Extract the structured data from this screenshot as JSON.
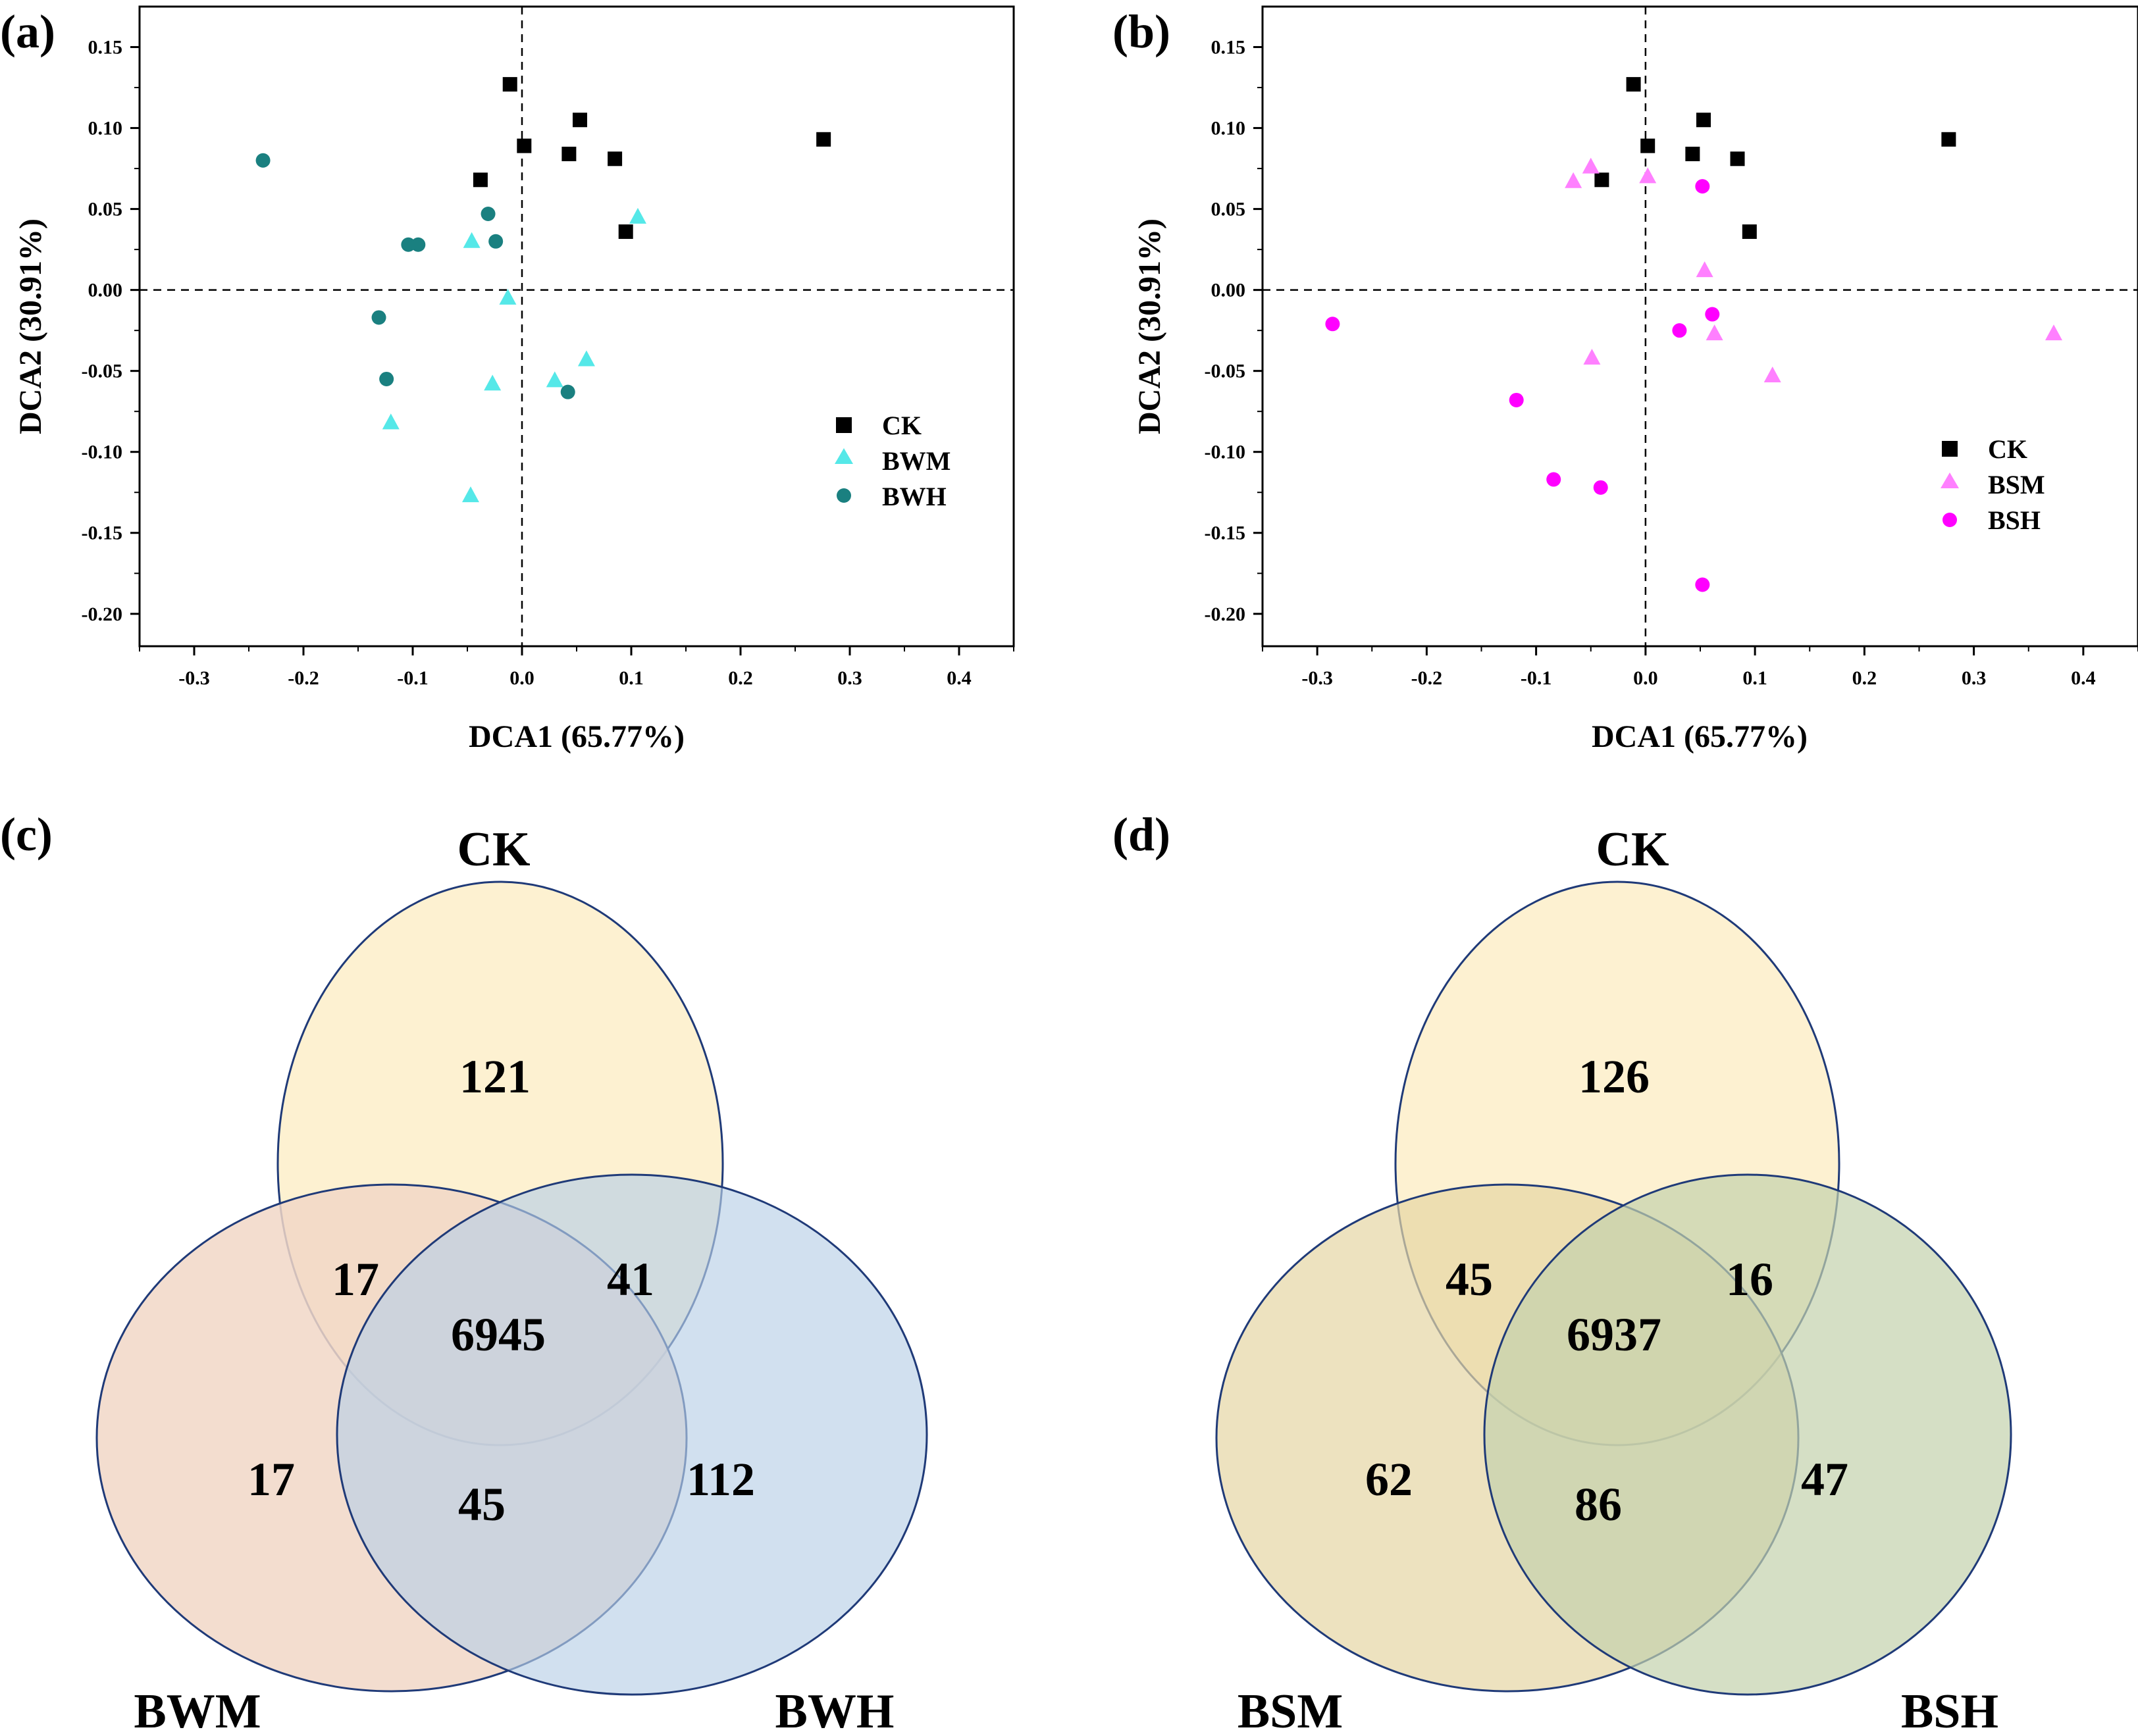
{
  "figure": {
    "panel_labels": [
      "(a)",
      "(b)",
      "(c)",
      "(d)"
    ]
  },
  "chart_data": [
    {
      "panel": "(a)",
      "type": "scatter",
      "xlabel": "DCA1 (65.77%)",
      "ylabel": "DCA2 (30.91%)",
      "xlim": [
        -0.35,
        0.45
      ],
      "ylim": [
        -0.22,
        0.175
      ],
      "xticks": [
        "-0.3",
        "-0.2",
        "-0.1",
        "0.0",
        "0.1",
        "0.2",
        "0.3",
        "0.4"
      ],
      "xtick_values": [
        -0.3,
        -0.2,
        -0.1,
        0.0,
        0.1,
        0.2,
        0.3,
        0.4
      ],
      "yticks": [
        "0.15",
        "0.10",
        "0.05",
        "0.00",
        "-0.05",
        "-0.10",
        "-0.15",
        "-0.20"
      ],
      "ytick_values": [
        0.15,
        0.1,
        0.05,
        0.0,
        -0.05,
        -0.1,
        -0.15,
        -0.2
      ],
      "reference_lines": {
        "x": 0,
        "y": 0
      },
      "legend_position": "center-right",
      "series": [
        {
          "name": "CK",
          "marker": "square",
          "color": "#000000",
          "points": [
            [
              -0.011,
              0.127
            ],
            [
              0.002,
              0.089
            ],
            [
              -0.038,
              0.068
            ],
            [
              0.053,
              0.105
            ],
            [
              0.043,
              0.084
            ],
            [
              0.085,
              0.081
            ],
            [
              0.095,
              0.036
            ],
            [
              0.276,
              0.093
            ]
          ]
        },
        {
          "name": "BWM",
          "marker": "triangle",
          "color": "#55e8e8",
          "points": [
            [
              0.106,
              0.045
            ],
            [
              -0.046,
              0.03
            ],
            [
              -0.013,
              -0.005
            ],
            [
              -0.027,
              -0.058
            ],
            [
              0.03,
              -0.056
            ],
            [
              0.059,
              -0.043
            ],
            [
              -0.12,
              -0.082
            ],
            [
              -0.047,
              -0.127
            ]
          ]
        },
        {
          "name": "BWH",
          "marker": "circle",
          "color": "#1a8080",
          "points": [
            [
              -0.237,
              0.08
            ],
            [
              -0.031,
              0.047
            ],
            [
              -0.024,
              0.03
            ],
            [
              -0.104,
              0.028
            ],
            [
              -0.095,
              0.028
            ],
            [
              -0.131,
              -0.017
            ],
            [
              -0.124,
              -0.055
            ],
            [
              0.042,
              -0.063
            ]
          ]
        }
      ]
    },
    {
      "panel": "(b)",
      "type": "scatter",
      "xlabel": "DCA1 (65.77%)",
      "ylabel": "DCA2 (30.91%)",
      "xlim": [
        -0.35,
        0.45
      ],
      "ylim": [
        -0.22,
        0.175
      ],
      "xticks": [
        "-0.3",
        "-0.2",
        "-0.1",
        "0.0",
        "0.1",
        "0.2",
        "0.3",
        "0.4"
      ],
      "xtick_values": [
        -0.3,
        -0.2,
        -0.1,
        0.0,
        0.1,
        0.2,
        0.3,
        0.4
      ],
      "yticks": [
        "0.15",
        "0.10",
        "0.05",
        "0.00",
        "-0.05",
        "-0.10",
        "-0.15",
        "-0.20"
      ],
      "ytick_values": [
        0.15,
        0.1,
        0.05,
        0.0,
        -0.05,
        -0.1,
        -0.15,
        -0.2
      ],
      "reference_lines": {
        "x": 0,
        "y": 0
      },
      "legend_position": "center-right",
      "series": [
        {
          "name": "CK",
          "marker": "square",
          "color": "#000000",
          "points": [
            [
              -0.011,
              0.127
            ],
            [
              0.002,
              0.089
            ],
            [
              -0.04,
              0.068
            ],
            [
              0.053,
              0.105
            ],
            [
              0.043,
              0.084
            ],
            [
              0.084,
              0.081
            ],
            [
              0.095,
              0.036
            ],
            [
              0.277,
              0.093
            ]
          ]
        },
        {
          "name": "BSM",
          "marker": "triangle",
          "color": "#ff80ff",
          "points": [
            [
              -0.066,
              0.067
            ],
            [
              -0.05,
              0.076
            ],
            [
              0.002,
              0.07
            ],
            [
              0.054,
              0.012
            ],
            [
              0.063,
              -0.027
            ],
            [
              0.116,
              -0.053
            ],
            [
              -0.049,
              -0.042
            ],
            [
              0.373,
              -0.027
            ]
          ]
        },
        {
          "name": "BSH",
          "marker": "circle",
          "color": "#ff00ff",
          "points": [
            [
              0.052,
              0.064
            ],
            [
              0.061,
              -0.015
            ],
            [
              0.031,
              -0.025
            ],
            [
              -0.286,
              -0.021
            ],
            [
              -0.118,
              -0.068
            ],
            [
              -0.084,
              -0.117
            ],
            [
              -0.041,
              -0.122
            ],
            [
              0.052,
              -0.182
            ]
          ]
        }
      ]
    },
    {
      "panel": "(c)",
      "type": "venn",
      "sets": [
        {
          "name": "CK",
          "color": "#fdf0cc"
        },
        {
          "name": "BWM",
          "color": "#f1d7c7"
        },
        {
          "name": "BWH",
          "color": "#cbdcec"
        }
      ],
      "regions": {
        "CK_only": "121",
        "BWM_only": "17",
        "BWH_only": "112",
        "CK_BWM": "17",
        "CK_BWH": "41",
        "BWM_BWH": "45",
        "all": "6945"
      }
    },
    {
      "panel": "(d)",
      "type": "venn",
      "sets": [
        {
          "name": "CK",
          "color": "#fdf0cc"
        },
        {
          "name": "BSM",
          "color": "#ece1ba"
        },
        {
          "name": "BSH",
          "color": "#d6e0c6"
        }
      ],
      "regions": {
        "CK_only": "126",
        "BSM_only": "62",
        "BSH_only": "47",
        "CK_BSM": "45",
        "CK_BSH": "16",
        "BSM_BSH": "86",
        "all": "6937"
      }
    }
  ]
}
